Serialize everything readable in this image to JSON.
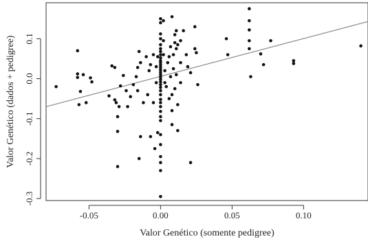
{
  "chart_data": {
    "type": "scatter",
    "xlabel": "Valor Genético (somente pedigree)",
    "ylabel": "Valor Genético (dados + pedigree)",
    "xlim": [
      -0.08,
      0.145
    ],
    "ylim": [
      -0.305,
      0.19
    ],
    "x_ticks": [
      {
        "value": -0.05,
        "label": "-0.05"
      },
      {
        "value": 0.0,
        "label": "0.00"
      },
      {
        "value": 0.05,
        "label": "0.05"
      },
      {
        "value": 0.1,
        "label": "0.10"
      }
    ],
    "y_ticks": [
      {
        "value": -0.3,
        "label": "-0.3"
      },
      {
        "value": -0.2,
        "label": "-0.2"
      },
      {
        "value": -0.1,
        "label": "-0.1"
      },
      {
        "value": 0.0,
        "label": "0.0"
      },
      {
        "value": 0.1,
        "label": "0.1"
      }
    ],
    "grid": false,
    "regression_line": {
      "x": [
        -0.08,
        0.145
      ],
      "y": [
        -0.07,
        0.143
      ],
      "color": "#8a8a8a"
    },
    "point_color": "#111111",
    "points": [
      [
        -0.073,
        -0.02
      ],
      [
        -0.058,
        0.07
      ],
      [
        -0.058,
        0.012
      ],
      [
        -0.058,
        0.003
      ],
      [
        -0.056,
        -0.032
      ],
      [
        -0.057,
        -0.065
      ],
      [
        -0.054,
        0.01
      ],
      [
        -0.052,
        -0.06
      ],
      [
        -0.049,
        0.002
      ],
      [
        -0.048,
        -0.008
      ],
      [
        -0.034,
        0.032
      ],
      [
        -0.032,
        0.028
      ],
      [
        -0.036,
        -0.043
      ],
      [
        -0.032,
        -0.053
      ],
      [
        -0.031,
        -0.06
      ],
      [
        -0.029,
        -0.07
      ],
      [
        -0.03,
        -0.095
      ],
      [
        -0.03,
        -0.132
      ],
      [
        -0.03,
        -0.22
      ],
      [
        -0.028,
        -0.018
      ],
      [
        -0.026,
        0.008
      ],
      [
        -0.024,
        -0.03
      ],
      [
        -0.023,
        -0.07
      ],
      [
        -0.021,
        -0.045
      ],
      [
        -0.019,
        -0.015
      ],
      [
        -0.017,
        0.005
      ],
      [
        -0.016,
        -0.03
      ],
      [
        -0.016,
        0.028
      ],
      [
        -0.015,
        0.068
      ],
      [
        -0.014,
        0.04
      ],
      [
        -0.014,
        -0.145
      ],
      [
        -0.015,
        -0.2
      ],
      [
        -0.012,
        -0.06
      ],
      [
        -0.01,
        0.055
      ],
      [
        -0.009,
        -0.04
      ],
      [
        -0.008,
        0.02
      ],
      [
        -0.007,
        0.035
      ],
      [
        -0.007,
        -0.145
      ],
      [
        -0.005,
        0.06
      ],
      [
        -0.005,
        -0.06
      ],
      [
        -0.004,
        -0.175
      ],
      [
        -0.003,
        0.03
      ],
      [
        -0.003,
        -0.01
      ],
      [
        -0.002,
        0.055
      ],
      [
        -0.002,
        -0.135
      ],
      [
        0.0,
        0.15
      ],
      [
        0.0,
        0.14
      ],
      [
        0.0,
        0.112
      ],
      [
        0.0,
        0.1
      ],
      [
        0.0,
        0.085
      ],
      [
        0.0,
        0.075
      ],
      [
        0.0,
        0.068
      ],
      [
        0.0,
        0.06
      ],
      [
        0.0,
        0.052
      ],
      [
        0.0,
        0.045
      ],
      [
        0.0,
        0.04
      ],
      [
        0.0,
        0.034
      ],
      [
        0.0,
        0.028
      ],
      [
        0.0,
        0.022
      ],
      [
        0.0,
        0.016
      ],
      [
        0.0,
        0.01
      ],
      [
        0.0,
        0.004
      ],
      [
        0.0,
        -0.002
      ],
      [
        0.0,
        -0.008
      ],
      [
        0.0,
        -0.015
      ],
      [
        0.0,
        -0.022
      ],
      [
        0.0,
        -0.03
      ],
      [
        0.0,
        -0.04
      ],
      [
        0.0,
        -0.052
      ],
      [
        0.0,
        -0.06
      ],
      [
        0.0,
        -0.07
      ],
      [
        0.0,
        -0.082
      ],
      [
        0.0,
        -0.095
      ],
      [
        0.0,
        -0.105
      ],
      [
        0.0,
        -0.14
      ],
      [
        0.0,
        -0.165
      ],
      [
        0.0,
        -0.195
      ],
      [
        0.0,
        -0.21
      ],
      [
        0.0,
        -0.23
      ],
      [
        0.0,
        -0.295
      ],
      [
        0.002,
        0.145
      ],
      [
        0.002,
        0.095
      ],
      [
        0.002,
        0.06
      ],
      [
        0.003,
        0.02
      ],
      [
        0.003,
        -0.01
      ],
      [
        0.004,
        -0.02
      ],
      [
        0.005,
        0.04
      ],
      [
        0.006,
        0.055
      ],
      [
        0.006,
        -0.05
      ],
      [
        0.007,
        0.08
      ],
      [
        0.007,
        0.005
      ],
      [
        0.008,
        0.155
      ],
      [
        0.008,
        -0.04
      ],
      [
        0.008,
        -0.08
      ],
      [
        0.008,
        -0.115
      ],
      [
        0.009,
        0.06
      ],
      [
        0.009,
        0.025
      ],
      [
        0.01,
        0.11
      ],
      [
        0.01,
        0.09
      ],
      [
        0.01,
        -0.025
      ],
      [
        0.011,
        0.12
      ],
      [
        0.011,
        0.075
      ],
      [
        0.011,
        0.01
      ],
      [
        0.012,
        0.085
      ],
      [
        0.012,
        -0.065
      ],
      [
        0.012,
        -0.13
      ],
      [
        0.014,
        0.095
      ],
      [
        0.014,
        0.04
      ],
      [
        0.014,
        -0.01
      ],
      [
        0.016,
        0.12
      ],
      [
        0.018,
        0.06
      ],
      [
        0.019,
        0.03
      ],
      [
        0.021,
        0.015
      ],
      [
        0.021,
        -0.21
      ],
      [
        0.024,
        0.13
      ],
      [
        0.024,
        0.075
      ],
      [
        0.025,
        0.065
      ],
      [
        0.026,
        -0.015
      ],
      [
        0.046,
        0.1
      ],
      [
        0.047,
        0.06
      ],
      [
        0.062,
        0.175
      ],
      [
        0.062,
        0.145
      ],
      [
        0.062,
        0.122
      ],
      [
        0.062,
        0.095
      ],
      [
        0.062,
        0.075
      ],
      [
        0.063,
        0.005
      ],
      [
        0.07,
        0.062
      ],
      [
        0.072,
        0.035
      ],
      [
        0.077,
        0.095
      ],
      [
        0.093,
        0.045
      ],
      [
        0.093,
        0.038
      ],
      [
        0.14,
        0.082
      ]
    ]
  }
}
